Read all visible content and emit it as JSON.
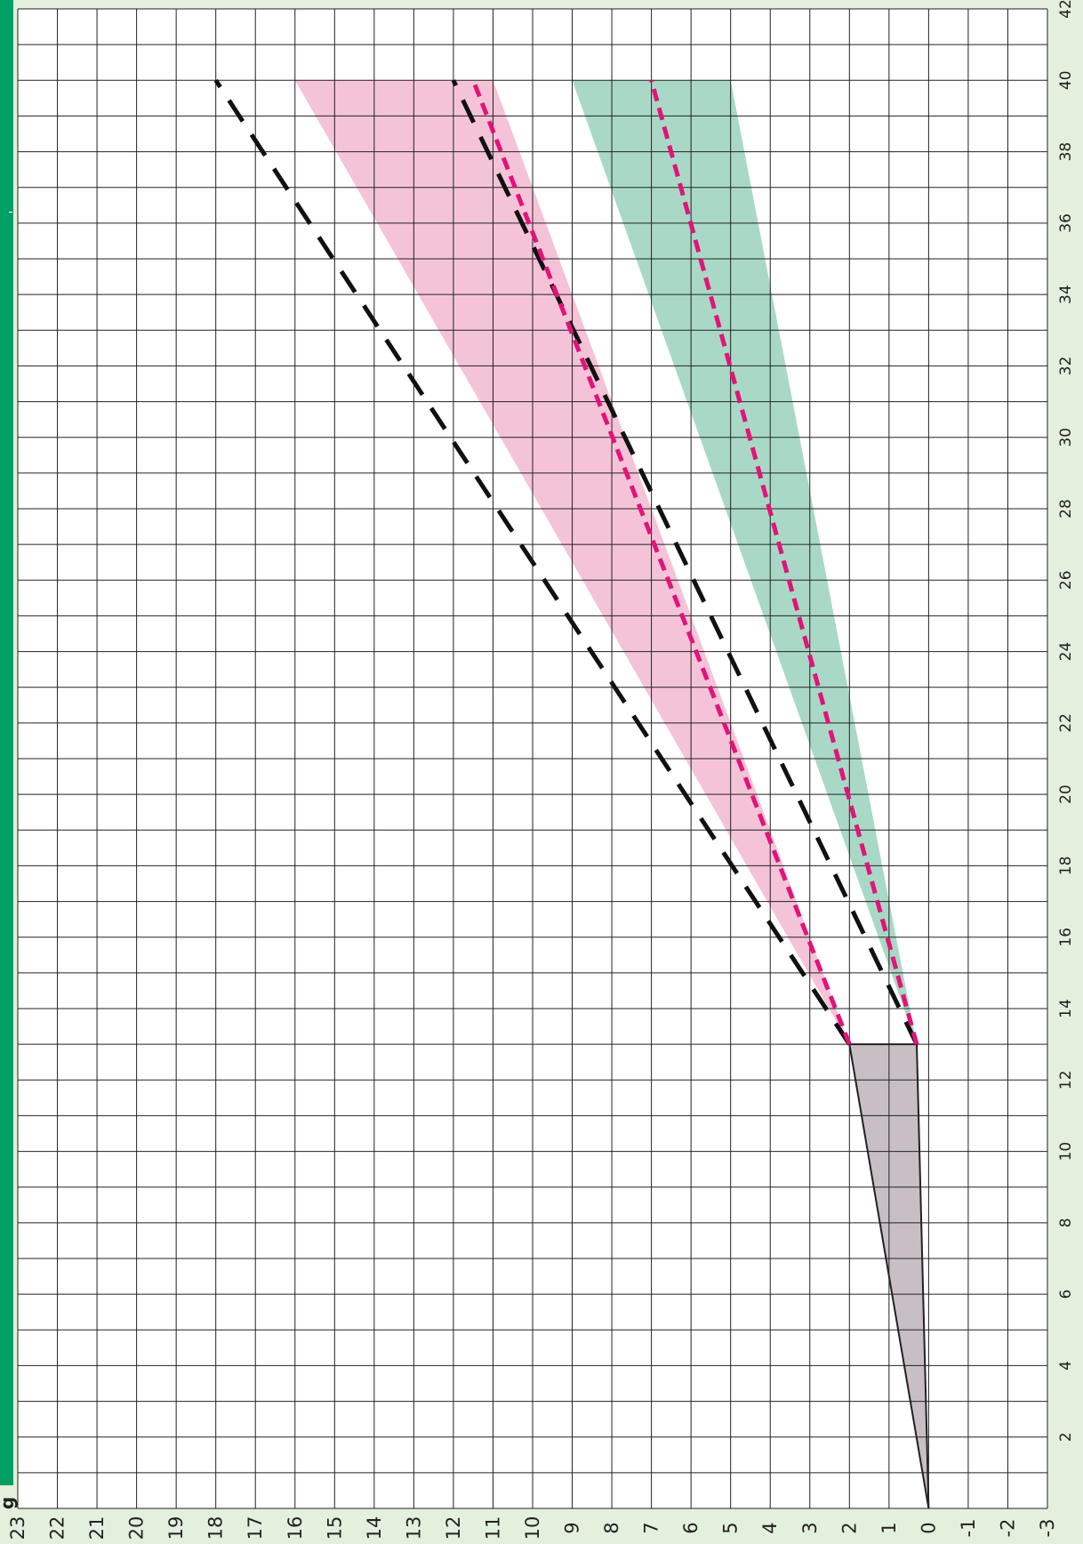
{
  "chart_data": {
    "type": "area",
    "orientation": "rotated-90",
    "title": "",
    "xlabel": "",
    "ylabel": "",
    "x_ticks": [
      2,
      4,
      6,
      8,
      10,
      12,
      14,
      16,
      18,
      20,
      22,
      24,
      26,
      28,
      30,
      32,
      34,
      36,
      38,
      40,
      42
    ],
    "y_ticks": [
      23,
      22,
      21,
      20,
      19,
      18,
      17,
      16,
      15,
      14,
      13,
      12,
      11,
      10,
      9,
      8,
      7,
      6,
      5,
      4,
      3,
      2,
      1,
      0,
      -1,
      -2,
      -3
    ],
    "xlim": [
      0,
      42
    ],
    "ylim": [
      -3,
      23
    ],
    "grid": true,
    "series": [
      {
        "style": "band",
        "color": "#c8bfc5",
        "outline": "#222222",
        "points": [
          [
            0,
            0
          ],
          [
            13,
            2
          ],
          [
            13,
            0.3
          ]
        ]
      },
      {
        "style": "band",
        "color": "#f5c3d8",
        "points": [
          [
            13,
            2
          ],
          [
            40,
            16
          ],
          [
            40,
            11
          ],
          [
            13,
            2
          ]
        ]
      },
      {
        "style": "band",
        "color": "#a9d9c6",
        "points": [
          [
            13,
            0.3
          ],
          [
            40,
            9
          ],
          [
            40,
            5
          ],
          [
            13,
            0.3
          ]
        ]
      },
      {
        "style": "dashed",
        "color": "#111111",
        "points": [
          [
            13,
            2
          ],
          [
            40,
            18
          ]
        ]
      },
      {
        "style": "dashed",
        "color": "#111111",
        "points": [
          [
            13,
            0.3
          ],
          [
            40,
            12
          ]
        ]
      },
      {
        "style": "dashed",
        "color": "#e0147a",
        "points": [
          [
            13,
            2
          ],
          [
            40,
            11.5
          ]
        ]
      },
      {
        "style": "dashed",
        "color": "#e0147a",
        "points": [
          [
            13,
            0.3
          ],
          [
            40,
            7
          ]
        ]
      }
    ]
  },
  "header_fragment": "g"
}
